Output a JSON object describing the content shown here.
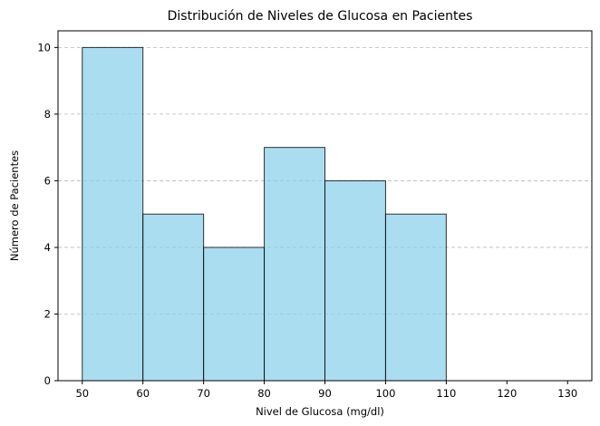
{
  "chart_data": {
    "type": "bar",
    "title": "Distribución de Niveles de Glucosa en Pacientes",
    "xlabel": "Nivel de Glucosa (mg/dl)",
    "ylabel": "Número de Pacientes",
    "bins": [
      [
        50,
        60
      ],
      [
        60,
        70
      ],
      [
        70,
        80
      ],
      [
        80,
        90
      ],
      [
        90,
        100
      ],
      [
        100,
        110
      ]
    ],
    "values": [
      10,
      5,
      4,
      7,
      6,
      5
    ],
    "xlim": [
      46,
      134
    ],
    "ylim": [
      0,
      10.5
    ],
    "xticks": [
      50,
      60,
      70,
      80,
      90,
      100,
      110,
      120,
      130
    ],
    "yticks": [
      0,
      2,
      4,
      6,
      8,
      10
    ],
    "grid": "y-dashed",
    "bar_color": "#87CEEB",
    "edge_color": "#000000"
  }
}
